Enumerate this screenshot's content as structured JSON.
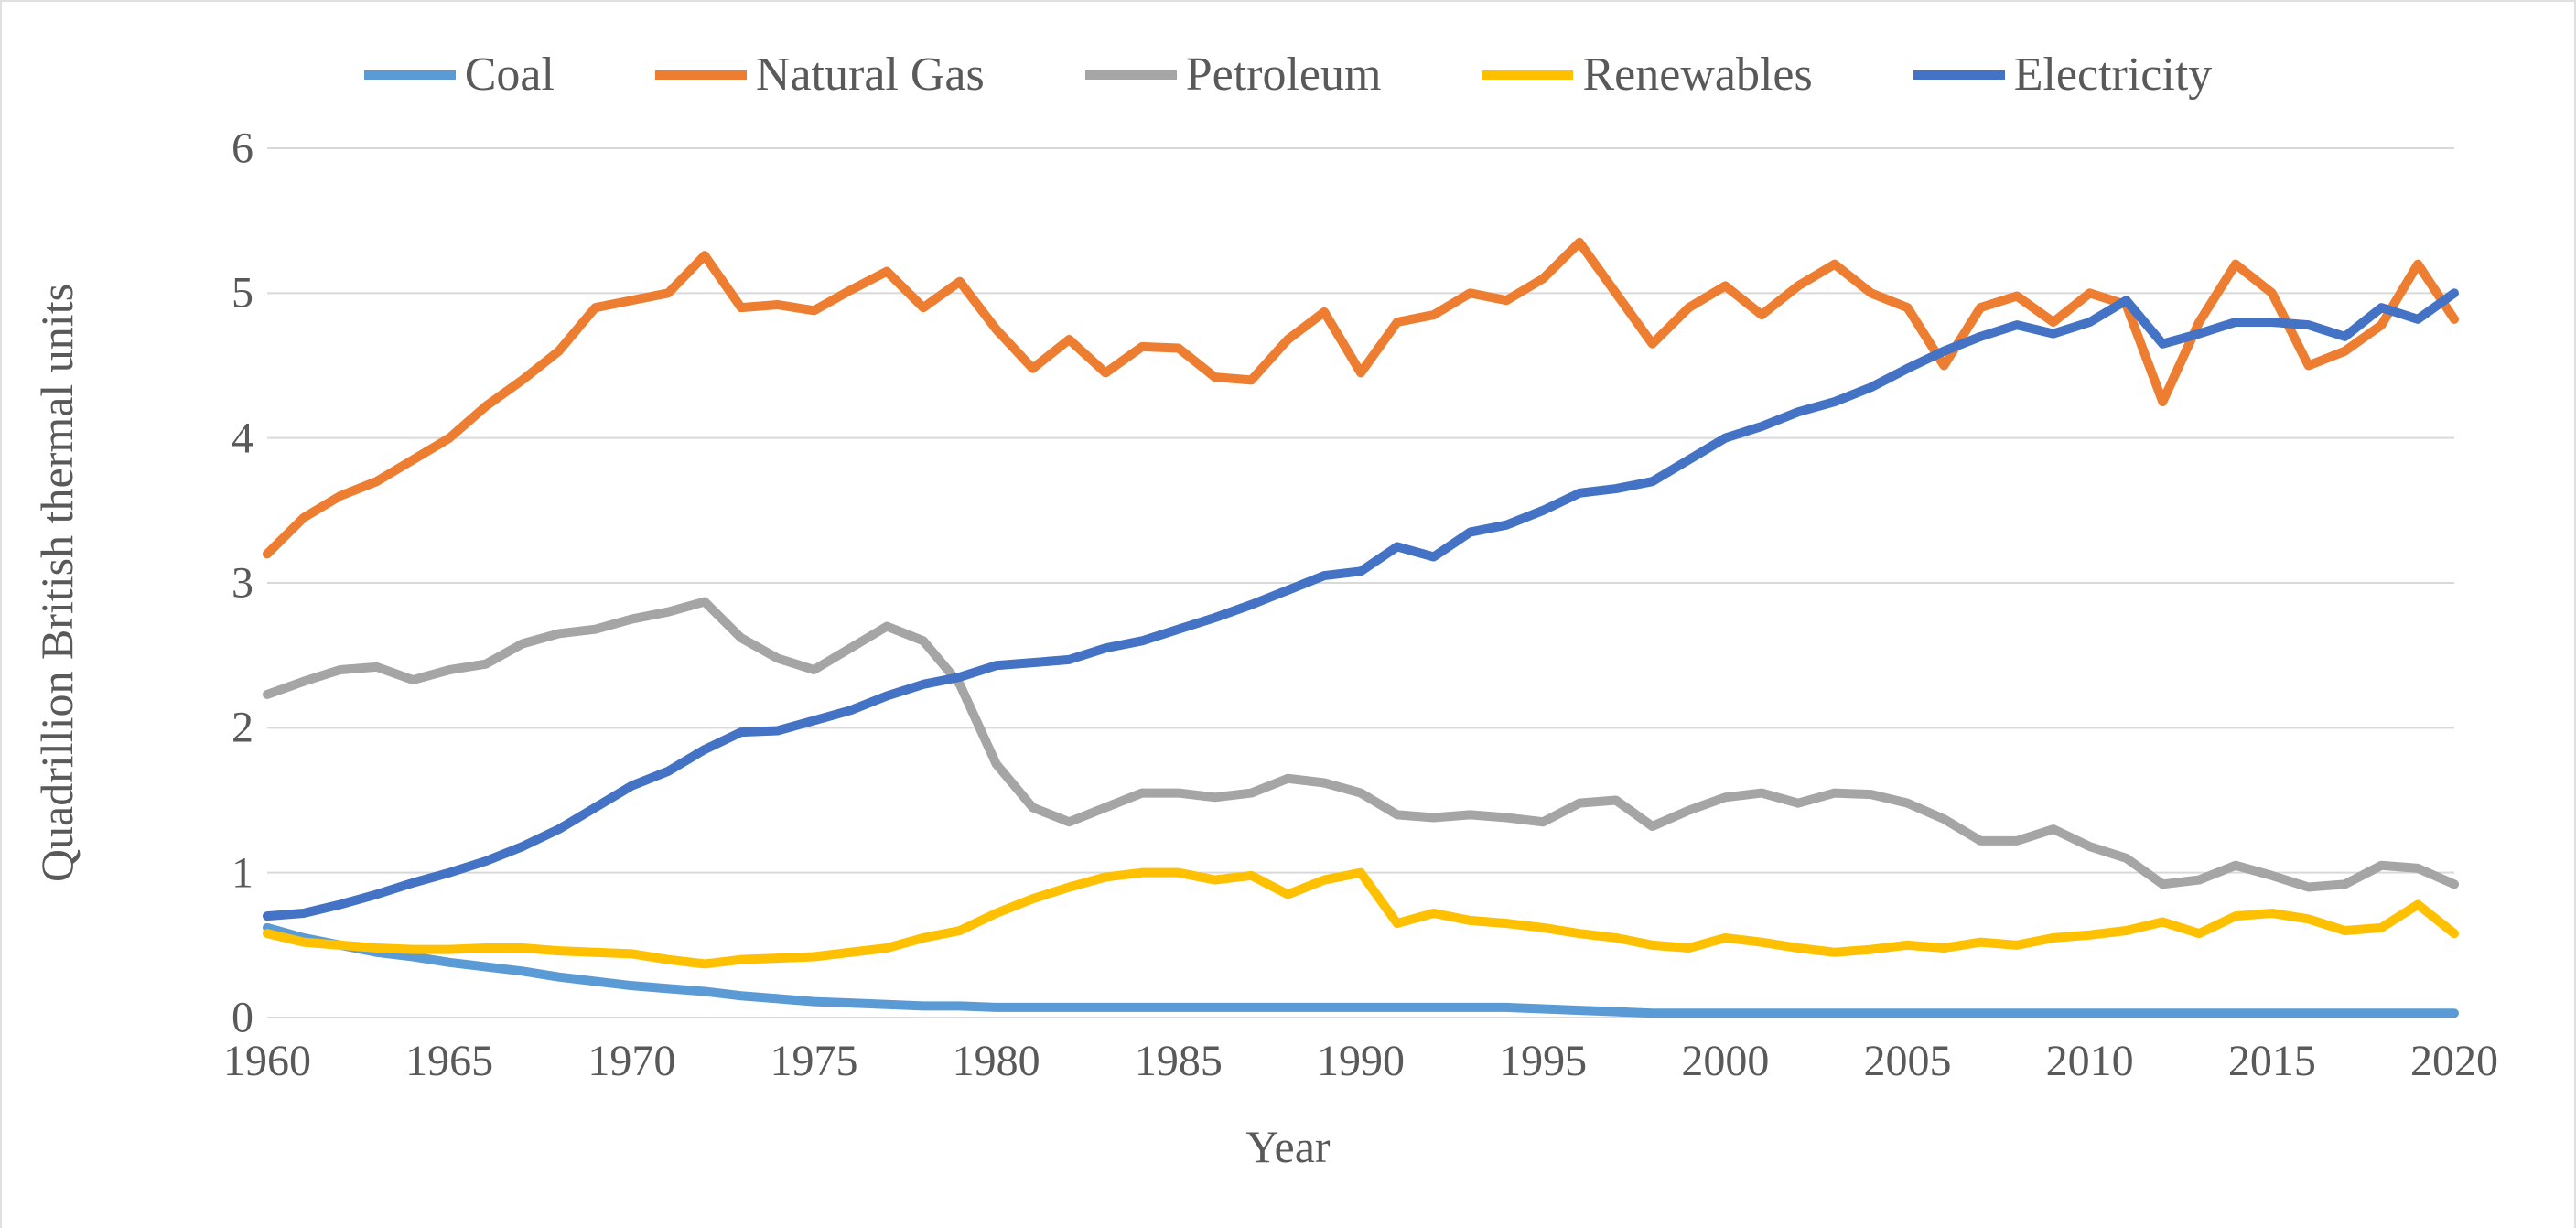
{
  "chart": {
    "type": "line",
    "background_color": "#ffffff",
    "grid_color": "#d9d9d9",
    "axis_color": "#d9d9d9",
    "text_color": "#595959",
    "font_family": "Times New Roman",
    "title_fontsize": 50,
    "tick_fontsize": 48,
    "legend_fontsize": 52,
    "line_width": 10,
    "x": {
      "label": "Year",
      "min": 1960,
      "max": 2020,
      "tick_start": 1960,
      "tick_step": 5,
      "ticks": [
        "1960",
        "1965",
        "1970",
        "1975",
        "1980",
        "1985",
        "1990",
        "1995",
        "2000",
        "2005",
        "2010",
        "2015",
        "2020"
      ]
    },
    "y": {
      "label": "Quadrillion British thermal units",
      "min": 0,
      "max": 6,
      "tick_step": 1,
      "ticks": [
        "0",
        "1",
        "2",
        "3",
        "4",
        "5",
        "6"
      ]
    },
    "years": [
      1960,
      1961,
      1962,
      1963,
      1964,
      1965,
      1966,
      1967,
      1968,
      1969,
      1970,
      1971,
      1972,
      1973,
      1974,
      1975,
      1976,
      1977,
      1978,
      1979,
      1980,
      1981,
      1982,
      1983,
      1984,
      1985,
      1986,
      1987,
      1988,
      1989,
      1990,
      1991,
      1992,
      1993,
      1994,
      1995,
      1996,
      1997,
      1998,
      1999,
      2000,
      2001,
      2002,
      2003,
      2004,
      2005,
      2006,
      2007,
      2008,
      2009,
      2010,
      2011,
      2012,
      2013,
      2014,
      2015,
      2016,
      2017,
      2018,
      2019,
      2020
    ],
    "series": [
      {
        "name": "Coal",
        "legend_label": "Coal",
        "color": "#5b9bd5",
        "values": [
          0.62,
          0.55,
          0.5,
          0.45,
          0.42,
          0.38,
          0.35,
          0.32,
          0.28,
          0.25,
          0.22,
          0.2,
          0.18,
          0.15,
          0.13,
          0.11,
          0.1,
          0.09,
          0.08,
          0.08,
          0.07,
          0.07,
          0.07,
          0.07,
          0.07,
          0.07,
          0.07,
          0.07,
          0.07,
          0.07,
          0.07,
          0.07,
          0.07,
          0.07,
          0.07,
          0.06,
          0.05,
          0.04,
          0.03,
          0.03,
          0.03,
          0.03,
          0.03,
          0.03,
          0.03,
          0.03,
          0.03,
          0.03,
          0.03,
          0.03,
          0.03,
          0.03,
          0.03,
          0.03,
          0.03,
          0.03,
          0.03,
          0.03,
          0.03,
          0.03,
          0.03
        ]
      },
      {
        "name": "Natural Gas",
        "legend_label": "Natural Gas",
        "color": "#ed7d31",
        "values": [
          3.2,
          3.45,
          3.6,
          3.7,
          3.85,
          4.0,
          4.22,
          4.4,
          4.6,
          4.9,
          4.95,
          5.0,
          5.26,
          4.9,
          4.92,
          4.88,
          5.02,
          5.15,
          4.9,
          5.08,
          4.75,
          4.48,
          4.68,
          4.45,
          4.63,
          4.62,
          4.42,
          4.4,
          4.68,
          4.87,
          4.45,
          4.8,
          4.85,
          5.0,
          4.95,
          5.1,
          5.35,
          5.0,
          4.65,
          4.9,
          5.05,
          4.85,
          5.05,
          5.2,
          5.0,
          4.9,
          4.5,
          4.9,
          4.98,
          4.8,
          5.0,
          4.92,
          4.25,
          4.8,
          5.2,
          5.0,
          4.5,
          4.6,
          4.78,
          5.2,
          4.82
        ]
      },
      {
        "name": "Petroleum",
        "legend_label": "Petroleum",
        "color": "#a5a5a5",
        "values": [
          2.23,
          2.32,
          2.4,
          2.42,
          2.33,
          2.4,
          2.44,
          2.58,
          2.65,
          2.68,
          2.75,
          2.8,
          2.87,
          2.62,
          2.48,
          2.4,
          2.55,
          2.7,
          2.6,
          2.3,
          1.75,
          1.45,
          1.35,
          1.45,
          1.55,
          1.55,
          1.52,
          1.55,
          1.65,
          1.62,
          1.55,
          1.4,
          1.38,
          1.4,
          1.38,
          1.35,
          1.48,
          1.5,
          1.32,
          1.43,
          1.52,
          1.55,
          1.48,
          1.55,
          1.54,
          1.48,
          1.37,
          1.22,
          1.22,
          1.3,
          1.18,
          1.1,
          0.92,
          0.95,
          1.05,
          0.98,
          0.9,
          0.92,
          1.05,
          1.03,
          0.92
        ]
      },
      {
        "name": "Renewables",
        "legend_label": "Renewables",
        "color": "#ffc000",
        "values": [
          0.58,
          0.52,
          0.5,
          0.48,
          0.47,
          0.47,
          0.48,
          0.48,
          0.46,
          0.45,
          0.44,
          0.4,
          0.37,
          0.4,
          0.41,
          0.42,
          0.45,
          0.48,
          0.55,
          0.6,
          0.72,
          0.82,
          0.9,
          0.97,
          1.0,
          1.0,
          0.95,
          0.98,
          0.85,
          0.95,
          1.0,
          0.65,
          0.72,
          0.67,
          0.65,
          0.62,
          0.58,
          0.55,
          0.5,
          0.48,
          0.55,
          0.52,
          0.48,
          0.45,
          0.47,
          0.5,
          0.48,
          0.52,
          0.5,
          0.55,
          0.57,
          0.6,
          0.66,
          0.58,
          0.7,
          0.72,
          0.68,
          0.6,
          0.62,
          0.78,
          0.58
        ]
      },
      {
        "name": "Electricity",
        "legend_label": "Electricity",
        "color": "#4472c4",
        "values": [
          0.7,
          0.72,
          0.78,
          0.85,
          0.93,
          1.0,
          1.08,
          1.18,
          1.3,
          1.45,
          1.6,
          1.7,
          1.85,
          1.97,
          1.98,
          2.05,
          2.12,
          2.22,
          2.3,
          2.35,
          2.43,
          2.45,
          2.47,
          2.55,
          2.6,
          2.68,
          2.76,
          2.85,
          2.95,
          3.05,
          3.08,
          3.25,
          3.18,
          3.35,
          3.4,
          3.5,
          3.62,
          3.65,
          3.7,
          3.85,
          4.0,
          4.08,
          4.18,
          4.25,
          4.35,
          4.48,
          4.6,
          4.7,
          4.78,
          4.72,
          4.8,
          4.95,
          4.65,
          4.72,
          4.8,
          4.8,
          4.78,
          4.7,
          4.9,
          4.82,
          5.0
        ]
      }
    ]
  }
}
